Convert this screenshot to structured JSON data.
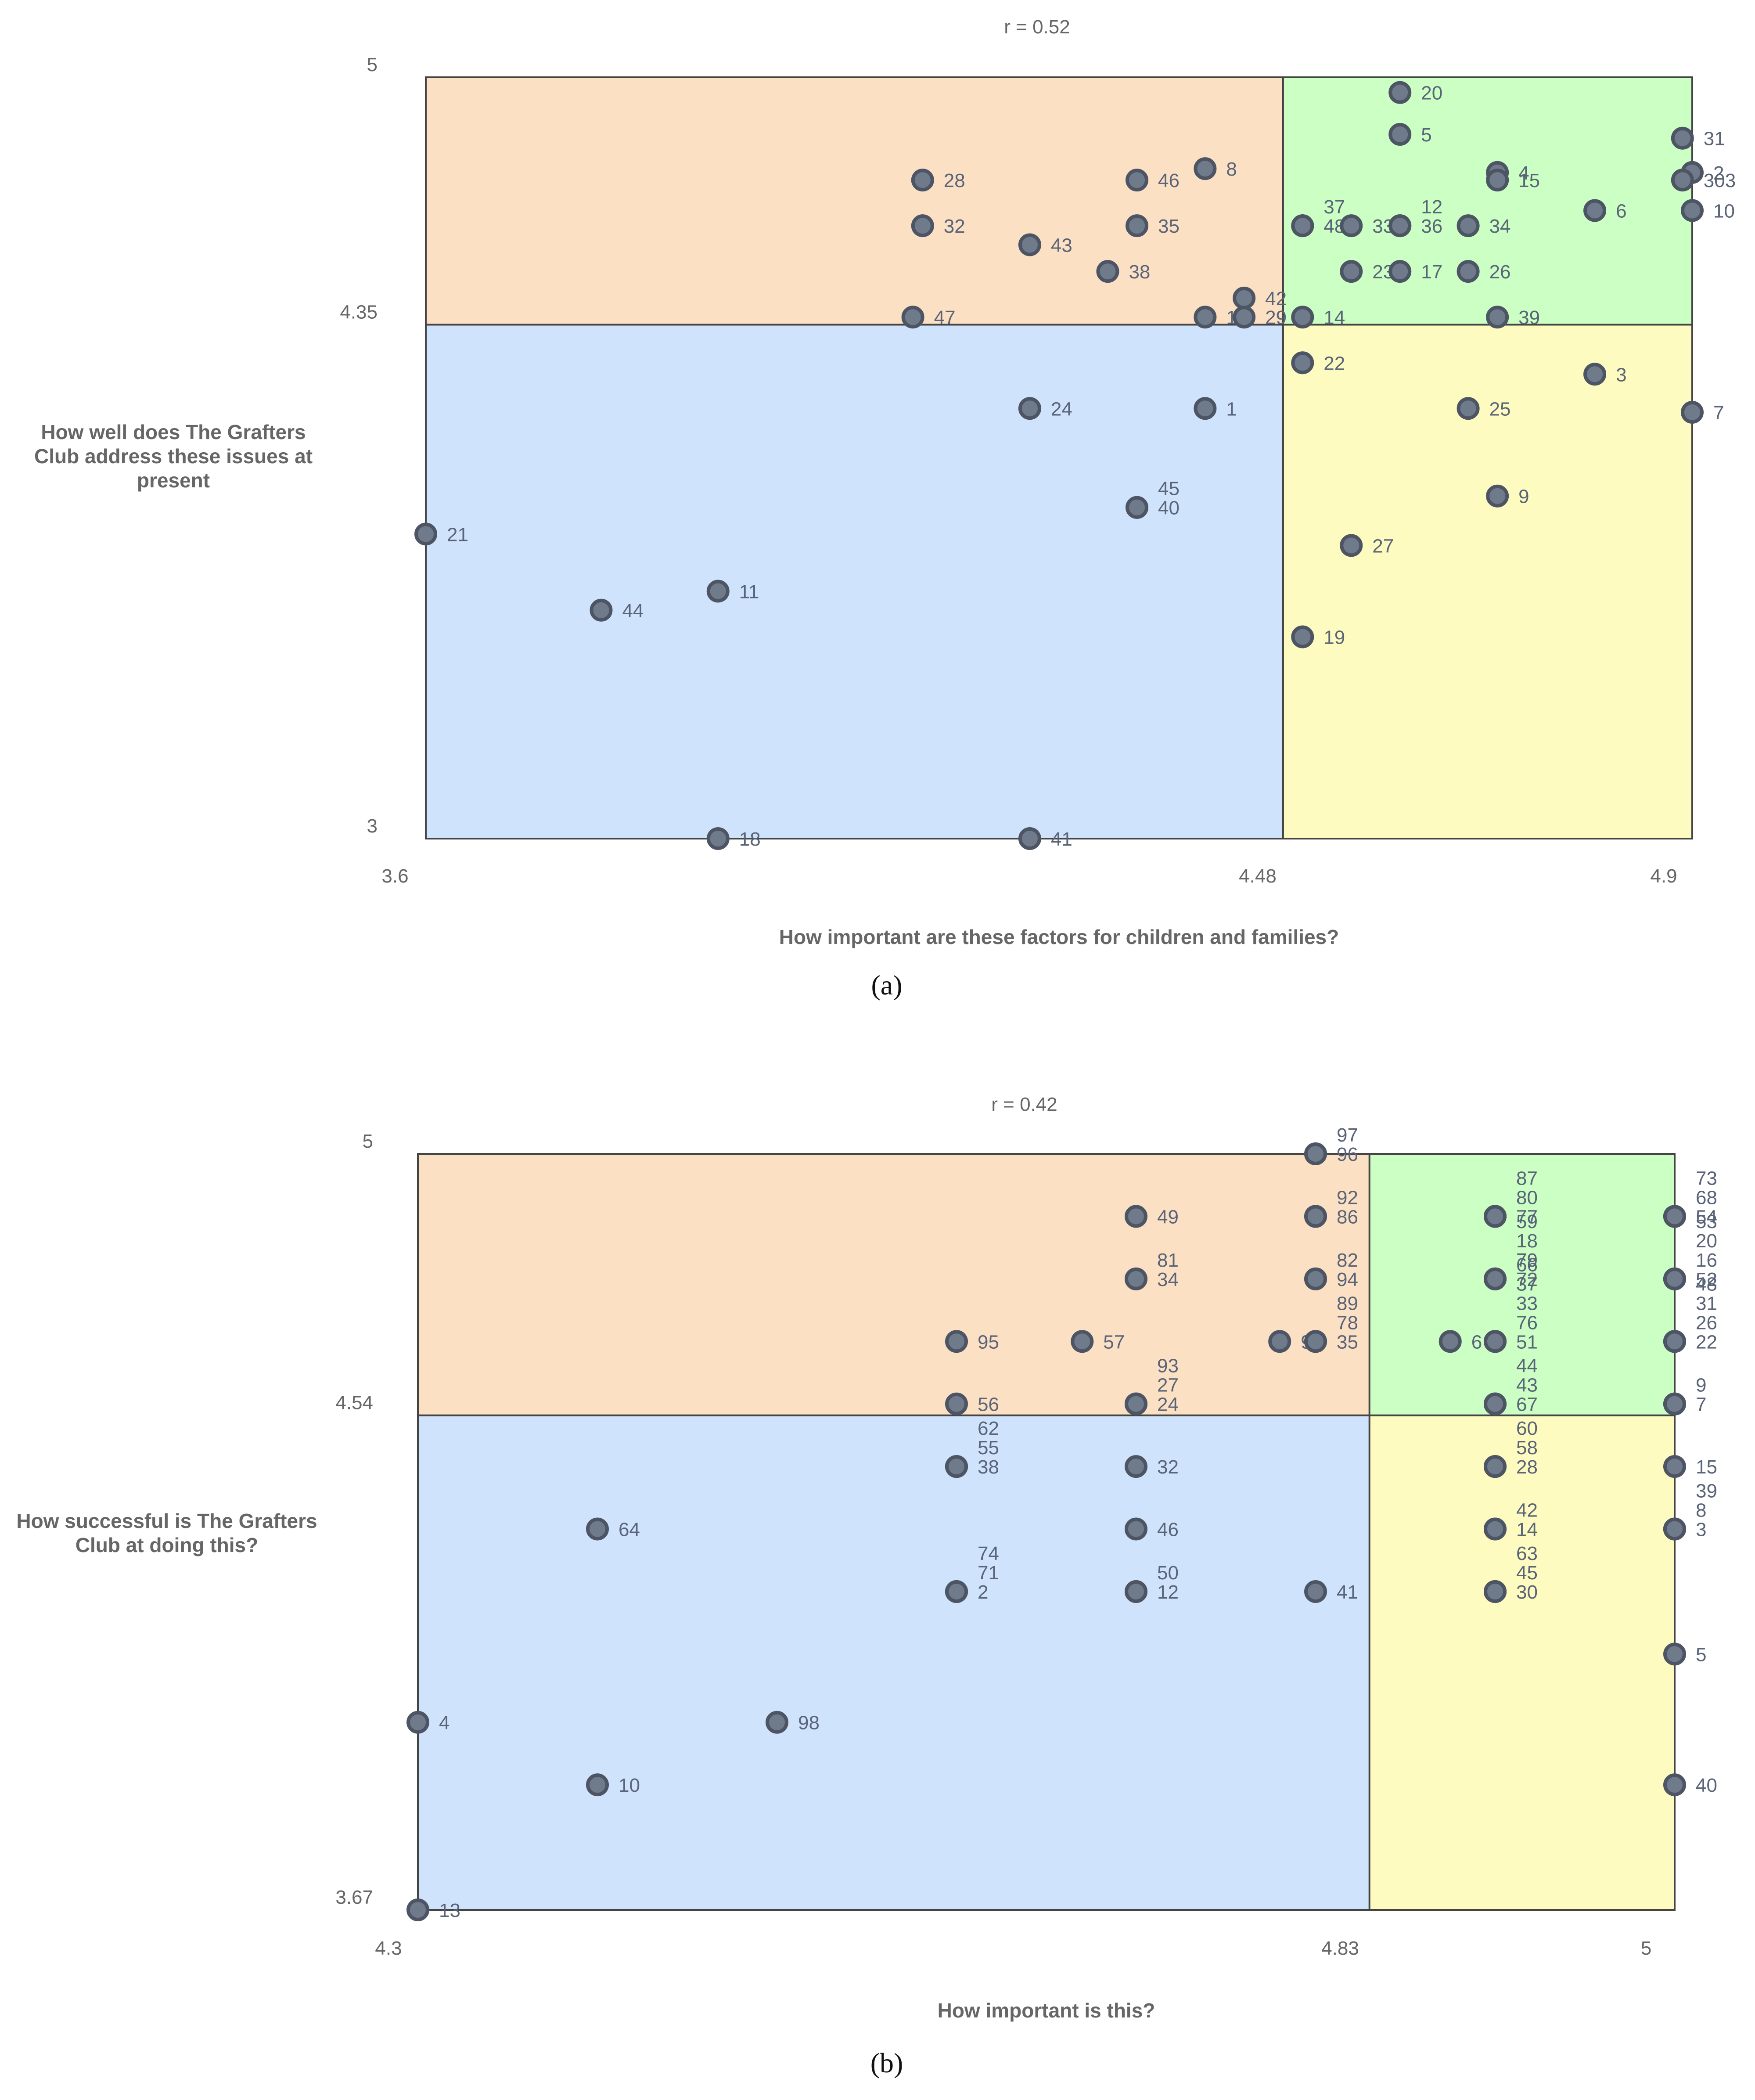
{
  "chart_data": [
    {
      "type": "scatter",
      "panel_label": "(a)",
      "title": "r = 0.52",
      "xlabel": "How important are these factors for children and families?",
      "ylabel": "How well does The Grafters Club address these issues at present",
      "xlim": [
        3.6,
        4.9
      ],
      "ylim": [
        3,
        5
      ],
      "x_ticks": [
        "3.6",
        "4.48",
        "4.9"
      ],
      "y_ticks": [
        "3",
        "4.35",
        "5"
      ],
      "x_split": 4.48,
      "y_split": 4.35,
      "quadrant_colors": {
        "top_left": "#fce0c4",
        "top_right": "#ccffc4",
        "bottom_left": "#cfe4fc",
        "bottom_right": "#fdfbbf"
      },
      "points": [
        {
          "label": "20",
          "x": 4.6,
          "y": 4.96
        },
        {
          "label": "5",
          "x": 4.6,
          "y": 4.85
        },
        {
          "label": "31",
          "x": 4.89,
          "y": 4.84
        },
        {
          "label": "2",
          "x": 4.9,
          "y": 4.75
        },
        {
          "label": "303",
          "x": 4.89,
          "y": 4.73
        },
        {
          "label": "4",
          "x": 4.7,
          "y": 4.75
        },
        {
          "label": "15",
          "x": 4.7,
          "y": 4.73
        },
        {
          "label": "28",
          "x": 4.11,
          "y": 4.73
        },
        {
          "label": "46",
          "x": 4.33,
          "y": 4.73
        },
        {
          "label": "8",
          "x": 4.4,
          "y": 4.76
        },
        {
          "label": "6",
          "x": 4.8,
          "y": 4.65
        },
        {
          "label": "10",
          "x": 4.9,
          "y": 4.65
        },
        {
          "label": "32",
          "x": 4.11,
          "y": 4.61
        },
        {
          "label": "35",
          "x": 4.33,
          "y": 4.61
        },
        {
          "label": "43",
          "x": 4.22,
          "y": 4.56
        },
        {
          "label": "37",
          "x": 4.5,
          "y": 4.61
        },
        {
          "label": "48",
          "x": 4.5,
          "y": 4.61
        },
        {
          "label": "33",
          "x": 4.55,
          "y": 4.61
        },
        {
          "label": "12",
          "x": 4.6,
          "y": 4.61
        },
        {
          "label": "36",
          "x": 4.6,
          "y": 4.61
        },
        {
          "label": "34",
          "x": 4.67,
          "y": 4.61
        },
        {
          "label": "38",
          "x": 4.3,
          "y": 4.49
        },
        {
          "label": "23",
          "x": 4.55,
          "y": 4.49
        },
        {
          "label": "17",
          "x": 4.6,
          "y": 4.49
        },
        {
          "label": "26",
          "x": 4.67,
          "y": 4.49
        },
        {
          "label": "42",
          "x": 4.44,
          "y": 4.42
        },
        {
          "label": "47",
          "x": 4.1,
          "y": 4.37
        },
        {
          "label": "16",
          "x": 4.4,
          "y": 4.37
        },
        {
          "label": "29",
          "x": 4.44,
          "y": 4.37
        },
        {
          "label": "14",
          "x": 4.5,
          "y": 4.37
        },
        {
          "label": "39",
          "x": 4.7,
          "y": 4.37
        },
        {
          "label": "22",
          "x": 4.5,
          "y": 4.25
        },
        {
          "label": "3",
          "x": 4.8,
          "y": 4.22
        },
        {
          "label": "24",
          "x": 4.22,
          "y": 4.13
        },
        {
          "label": "1",
          "x": 4.4,
          "y": 4.13
        },
        {
          "label": "25",
          "x": 4.67,
          "y": 4.13
        },
        {
          "label": "7",
          "x": 4.9,
          "y": 4.12
        },
        {
          "label": "9",
          "x": 4.7,
          "y": 3.9
        },
        {
          "label": "45",
          "x": 4.33,
          "y": 3.87
        },
        {
          "label": "40",
          "x": 4.33,
          "y": 3.87
        },
        {
          "label": "21",
          "x": 3.6,
          "y": 3.8
        },
        {
          "label": "27",
          "x": 4.55,
          "y": 3.77
        },
        {
          "label": "11",
          "x": 3.9,
          "y": 3.65
        },
        {
          "label": "44",
          "x": 3.78,
          "y": 3.6
        },
        {
          "label": "19",
          "x": 4.5,
          "y": 3.53
        },
        {
          "label": "18",
          "x": 3.9,
          "y": 3.0
        },
        {
          "label": "41",
          "x": 4.22,
          "y": 3.0
        }
      ]
    },
    {
      "type": "scatter",
      "panel_label": "(b)",
      "title": "r = 0.42",
      "xlabel": "How important is this?",
      "ylabel": "How successful is The Grafters Club at doing this?",
      "xlim": [
        4.3,
        5
      ],
      "ylim": [
        3.67,
        5
      ],
      "x_ticks": [
        "4.3",
        "4.83",
        "5"
      ],
      "y_ticks": [
        "3.67",
        "4.54",
        "5"
      ],
      "x_split": 4.83,
      "y_split": 4.54,
      "quadrant_colors": {
        "top_left": "#fce0c4",
        "top_right": "#ccffc4",
        "bottom_left": "#cfe4fc",
        "bottom_right": "#fdfbbf"
      },
      "points": [
        {
          "label": "97",
          "x": 4.8,
          "y": 5.0
        },
        {
          "label": "96",
          "x": 4.8,
          "y": 5.0
        },
        {
          "label": "92",
          "x": 4.8,
          "y": 4.89
        },
        {
          "label": "86",
          "x": 4.8,
          "y": 4.89
        },
        {
          "label": "49",
          "x": 4.7,
          "y": 4.89
        },
        {
          "label": "87",
          "x": 4.9,
          "y": 4.89
        },
        {
          "label": "80",
          "x": 4.9,
          "y": 4.89
        },
        {
          "label": "77",
          "x": 4.9,
          "y": 4.89
        },
        {
          "label": "73",
          "x": 5.0,
          "y": 4.89
        },
        {
          "label": "68",
          "x": 5.0,
          "y": 4.89
        },
        {
          "label": "54",
          "x": 5.0,
          "y": 4.89
        },
        {
          "label": "81",
          "x": 4.7,
          "y": 4.78
        },
        {
          "label": "34",
          "x": 4.7,
          "y": 4.78
        },
        {
          "label": "82",
          "x": 4.8,
          "y": 4.78
        },
        {
          "label": "94",
          "x": 4.8,
          "y": 4.78
        },
        {
          "label": "59",
          "x": 4.9,
          "y": 4.78
        },
        {
          "label": "18",
          "x": 4.9,
          "y": 4.78
        },
        {
          "label": "79",
          "x": 4.9,
          "y": 4.78
        },
        {
          "label": "72",
          "x": 4.9,
          "y": 4.78
        },
        {
          "label": "53",
          "x": 5.0,
          "y": 4.78
        },
        {
          "label": "20",
          "x": 5.0,
          "y": 4.78
        },
        {
          "label": "16",
          "x": 5.0,
          "y": 4.78
        },
        {
          "label": "52",
          "x": 5.0,
          "y": 4.78
        },
        {
          "label": "95",
          "x": 4.6,
          "y": 4.67
        },
        {
          "label": "57",
          "x": 4.67,
          "y": 4.67
        },
        {
          "label": "90",
          "x": 4.78,
          "y": 4.67
        },
        {
          "label": "89",
          "x": 4.8,
          "y": 4.67
        },
        {
          "label": "78",
          "x": 4.8,
          "y": 4.67
        },
        {
          "label": "35",
          "x": 4.8,
          "y": 4.67
        },
        {
          "label": "6",
          "x": 4.875,
          "y": 4.67
        },
        {
          "label": "66",
          "x": 4.9,
          "y": 4.67
        },
        {
          "label": "37",
          "x": 4.9,
          "y": 4.67
        },
        {
          "label": "33",
          "x": 4.9,
          "y": 4.67
        },
        {
          "label": "76",
          "x": 4.9,
          "y": 4.67
        },
        {
          "label": "51",
          "x": 4.9,
          "y": 4.67
        },
        {
          "label": "48",
          "x": 5.0,
          "y": 4.67
        },
        {
          "label": "31",
          "x": 5.0,
          "y": 4.67
        },
        {
          "label": "26",
          "x": 5.0,
          "y": 4.67
        },
        {
          "label": "22",
          "x": 5.0,
          "y": 4.67
        },
        {
          "label": "93",
          "x": 4.7,
          "y": 4.56
        },
        {
          "label": "27",
          "x": 4.7,
          "y": 4.56
        },
        {
          "label": "24",
          "x": 4.7,
          "y": 4.56
        },
        {
          "label": "56",
          "x": 4.6,
          "y": 4.56
        },
        {
          "label": "44",
          "x": 4.9,
          "y": 4.56
        },
        {
          "label": "43",
          "x": 4.9,
          "y": 4.56
        },
        {
          "label": "67",
          "x": 4.9,
          "y": 4.56
        },
        {
          "label": "9",
          "x": 5.0,
          "y": 4.56
        },
        {
          "label": "7",
          "x": 5.0,
          "y": 4.56
        },
        {
          "label": "62",
          "x": 4.6,
          "y": 4.45
        },
        {
          "label": "55",
          "x": 4.6,
          "y": 4.45
        },
        {
          "label": "38",
          "x": 4.6,
          "y": 4.45
        },
        {
          "label": "32",
          "x": 4.7,
          "y": 4.45
        },
        {
          "label": "60",
          "x": 4.9,
          "y": 4.45
        },
        {
          "label": "58",
          "x": 4.9,
          "y": 4.45
        },
        {
          "label": "28",
          "x": 4.9,
          "y": 4.45
        },
        {
          "label": "15",
          "x": 5.0,
          "y": 4.45
        },
        {
          "label": "64",
          "x": 4.4,
          "y": 4.34
        },
        {
          "label": "46",
          "x": 4.7,
          "y": 4.34
        },
        {
          "label": "42",
          "x": 4.9,
          "y": 4.34
        },
        {
          "label": "14",
          "x": 4.9,
          "y": 4.34
        },
        {
          "label": "39",
          "x": 5.0,
          "y": 4.34
        },
        {
          "label": "8",
          "x": 5.0,
          "y": 4.34
        },
        {
          "label": "3",
          "x": 5.0,
          "y": 4.34
        },
        {
          "label": "74",
          "x": 4.6,
          "y": 4.23
        },
        {
          "label": "71",
          "x": 4.6,
          "y": 4.23
        },
        {
          "label": "2",
          "x": 4.6,
          "y": 4.23
        },
        {
          "label": "50",
          "x": 4.7,
          "y": 4.23
        },
        {
          "label": "12",
          "x": 4.7,
          "y": 4.23
        },
        {
          "label": "41",
          "x": 4.8,
          "y": 4.23
        },
        {
          "label": "63",
          "x": 4.9,
          "y": 4.23
        },
        {
          "label": "45",
          "x": 4.9,
          "y": 4.23
        },
        {
          "label": "30",
          "x": 4.9,
          "y": 4.23
        },
        {
          "label": "5",
          "x": 5.0,
          "y": 4.12
        },
        {
          "label": "4",
          "x": 4.3,
          "y": 4.0
        },
        {
          "label": "98",
          "x": 4.5,
          "y": 4.0
        },
        {
          "label": "10",
          "x": 4.4,
          "y": 3.89
        },
        {
          "label": "40",
          "x": 5.0,
          "y": 3.89
        },
        {
          "label": "13",
          "x": 4.3,
          "y": 3.67
        }
      ]
    }
  ]
}
